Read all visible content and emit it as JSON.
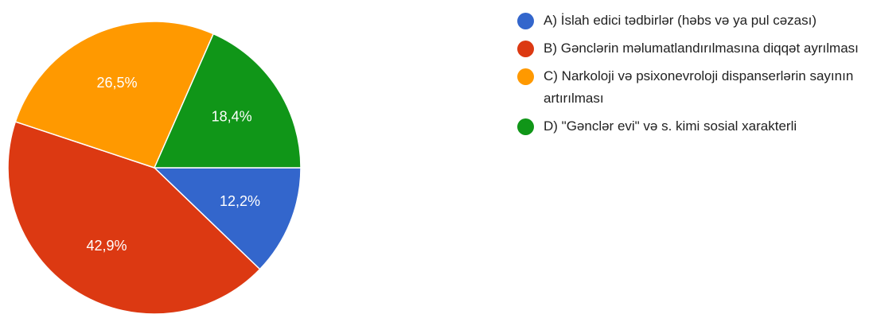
{
  "chart_data": {
    "type": "pie",
    "categories": [
      "A) İslah edici tədbirlər (həbs və ya pul cəzası)",
      "B) Gənclərin məlumatlandırılmasına diqqət ayrılması",
      "C) Narkoloji və psixonevroloji dispanserlərin sayının artırılması",
      "D) \"Gənclər evi\" və s. kimi sosial xarakterli"
    ],
    "values": [
      12.2,
      42.9,
      26.5,
      18.4
    ],
    "value_labels": [
      "12,2%",
      "42,9%",
      "26,5%",
      "18,4%"
    ],
    "colors": [
      "#3366cc",
      "#dc3912",
      "#ff9900",
      "#109618"
    ]
  }
}
